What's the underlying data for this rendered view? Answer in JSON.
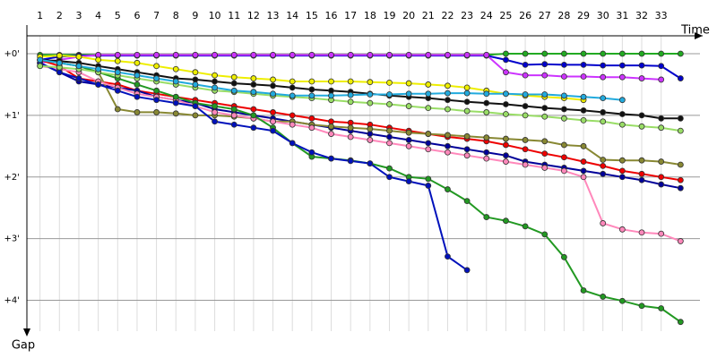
{
  "chart_data": {
    "type": "line",
    "x_label": "Time",
    "y_label": "Gap",
    "x": [
      1,
      2,
      3,
      4,
      5,
      6,
      7,
      8,
      9,
      10,
      11,
      12,
      13,
      14,
      15,
      16,
      17,
      18,
      19,
      20,
      21,
      22,
      23,
      24,
      25,
      26,
      27,
      28,
      29,
      30,
      31,
      32,
      33,
      34
    ],
    "xlim": [
      0,
      35
    ],
    "xticks": [
      1,
      2,
      3,
      4,
      5,
      6,
      7,
      8,
      9,
      10,
      11,
      12,
      13,
      14,
      15,
      16,
      17,
      18,
      19,
      20,
      21,
      22,
      23,
      24,
      25,
      26,
      27,
      28,
      29,
      30,
      31,
      32,
      33
    ],
    "ylim": [
      -0.45,
      4.5
    ],
    "yticks": [
      {
        "value": 0,
        "label": "+0'"
      },
      {
        "value": 1,
        "label": "+1'"
      },
      {
        "value": 2,
        "label": "+2'"
      },
      {
        "value": 3,
        "label": "+3'"
      },
      {
        "value": 4,
        "label": "+4'"
      }
    ],
    "y_inverted": true,
    "grid": true,
    "series": [
      {
        "color": "#22aa22",
        "values": [
          0.02,
          0.02,
          0.02,
          0.02,
          0.02,
          0.02,
          0.02,
          0.02,
          0.02,
          0.02,
          0.02,
          0.02,
          0.02,
          0.02,
          0.02,
          0.02,
          0.02,
          0.02,
          0.02,
          0.02,
          0.02,
          0.02,
          0.02,
          0.02,
          0,
          0,
          0,
          0,
          0,
          0,
          0,
          0,
          0,
          0
        ]
      },
      {
        "color": "#0000cc",
        "values": [
          0.1,
          0.05,
          0.03,
          0.03,
          0.03,
          0.03,
          0.03,
          0.03,
          0.03,
          0.03,
          0.03,
          0.03,
          0.03,
          0.03,
          0.03,
          0.03,
          0.03,
          0.03,
          0.03,
          0.03,
          0.03,
          0.03,
          0.03,
          0.03,
          0.1,
          0.18,
          0.17,
          0.18,
          0.18,
          0.19,
          0.19,
          0.19,
          0.2,
          0.4
        ]
      },
      {
        "color": "#cc33ff",
        "values": [
          0.15,
          0.1,
          0.05,
          0.02,
          0.02,
          0.02,
          0.02,
          0.02,
          0.02,
          0.02,
          0.02,
          0.02,
          0.02,
          0.02,
          0.02,
          0.02,
          0.02,
          0.02,
          0.02,
          0.02,
          0.02,
          0.02,
          0.02,
          0.02,
          0.3,
          0.35,
          0.35,
          0.37,
          0.37,
          0.38,
          0.38,
          0.4,
          0.42,
          null
        ]
      },
      {
        "color": "#ee0000",
        "values": [
          0.1,
          0.2,
          0.4,
          0.45,
          0.5,
          0.6,
          0.65,
          0.7,
          0.75,
          0.8,
          0.85,
          0.9,
          0.95,
          1.0,
          1.05,
          1.1,
          1.12,
          1.15,
          1.2,
          1.25,
          1.3,
          1.35,
          1.38,
          1.42,
          1.48,
          1.55,
          1.62,
          1.68,
          1.75,
          1.82,
          1.9,
          1.95,
          2.0,
          2.05
        ]
      },
      {
        "color": "#000099",
        "values": [
          0.15,
          0.3,
          0.45,
          0.5,
          0.55,
          0.6,
          0.7,
          0.75,
          0.8,
          0.9,
          0.95,
          1.0,
          1.05,
          1.1,
          1.15,
          1.2,
          1.25,
          1.3,
          1.35,
          1.4,
          1.45,
          1.5,
          1.55,
          1.6,
          1.65,
          1.75,
          1.8,
          1.85,
          1.9,
          1.95,
          2.0,
          2.05,
          2.12,
          2.18
        ]
      },
      {
        "color": "#888833",
        "values": [
          0.1,
          0.15,
          0.2,
          0.3,
          0.9,
          0.95,
          0.95,
          0.97,
          1.0,
          1.0,
          1.02,
          1.05,
          1.1,
          1.1,
          1.15,
          1.18,
          1.2,
          1.22,
          1.25,
          1.28,
          1.3,
          1.32,
          1.34,
          1.36,
          1.38,
          1.4,
          1.42,
          1.48,
          1.5,
          1.72,
          1.73,
          1.73,
          1.75,
          1.8
        ]
      },
      {
        "color": "#ff88bb",
        "values": [
          0.2,
          0.25,
          0.3,
          0.45,
          0.55,
          0.65,
          0.7,
          0.75,
          0.85,
          0.95,
          1.0,
          1.05,
          1.1,
          1.15,
          1.2,
          1.3,
          1.35,
          1.4,
          1.45,
          1.5,
          1.55,
          1.6,
          1.65,
          1.7,
          1.75,
          1.8,
          1.85,
          1.9,
          2.0,
          2.75,
          2.85,
          2.9,
          2.92,
          3.04
        ]
      },
      {
        "color": "#229922",
        "values": [
          0.1,
          0.15,
          0.2,
          0.3,
          0.4,
          0.5,
          0.6,
          0.7,
          0.8,
          0.85,
          0.9,
          1.0,
          1.2,
          1.45,
          1.67,
          1.7,
          1.73,
          1.78,
          1.86,
          2.0,
          2.03,
          2.2,
          2.39,
          2.65,
          2.71,
          2.8,
          2.93,
          3.3,
          3.84,
          3.94,
          4.01,
          4.09,
          4.13,
          4.35
        ]
      },
      {
        "color": "#0011bb",
        "values": [
          0.15,
          0.3,
          0.4,
          0.5,
          0.6,
          0.7,
          0.75,
          0.8,
          0.85,
          1.1,
          1.15,
          1.2,
          1.25,
          1.45,
          1.6,
          1.7,
          1.74,
          1.78,
          2.0,
          2.07,
          2.14,
          3.29,
          3.51,
          null,
          null,
          null,
          null,
          null,
          null,
          null,
          null,
          null,
          null,
          null
        ]
      },
      {
        "color": "#99dd66",
        "values": [
          0.2,
          0.22,
          0.25,
          0.3,
          0.35,
          0.4,
          0.45,
          0.5,
          0.55,
          0.6,
          0.62,
          0.65,
          0.68,
          0.7,
          0.72,
          0.75,
          0.78,
          0.8,
          0.82,
          0.85,
          0.88,
          0.9,
          0.93,
          0.95,
          0.98,
          1.0,
          1.02,
          1.05,
          1.08,
          1.1,
          1.15,
          1.18,
          1.2,
          1.25
        ]
      },
      {
        "color": "#111111",
        "values": [
          0.1,
          0.12,
          0.15,
          0.2,
          0.25,
          0.3,
          0.35,
          0.4,
          0.42,
          0.45,
          0.48,
          0.5,
          0.52,
          0.55,
          0.58,
          0.6,
          0.62,
          0.65,
          0.68,
          0.7,
          0.72,
          0.75,
          0.78,
          0.8,
          0.82,
          0.85,
          0.88,
          0.9,
          0.92,
          0.95,
          0.98,
          1.0,
          1.05,
          1.05
        ]
      },
      {
        "color": "#eeee00",
        "values": [
          0.05,
          0.03,
          0.05,
          0.1,
          0.12,
          0.15,
          0.2,
          0.25,
          0.3,
          0.35,
          0.38,
          0.4,
          0.42,
          0.45,
          0.45,
          0.45,
          0.45,
          0.46,
          0.47,
          0.48,
          0.5,
          0.52,
          0.55,
          0.6,
          0.65,
          0.68,
          0.7,
          0.72,
          0.75,
          null,
          null,
          null,
          null,
          null
        ]
      },
      {
        "color": "#22aadd",
        "values": [
          0.1,
          0.15,
          0.2,
          0.25,
          0.3,
          0.35,
          0.4,
          0.45,
          0.5,
          0.55,
          0.6,
          0.62,
          0.65,
          0.68,
          0.68,
          0.68,
          0.67,
          0.66,
          0.66,
          0.65,
          0.65,
          0.64,
          0.64,
          0.65,
          0.65,
          0.66,
          0.66,
          0.68,
          0.7,
          0.72,
          0.75,
          null,
          null,
          null
        ]
      }
    ]
  }
}
